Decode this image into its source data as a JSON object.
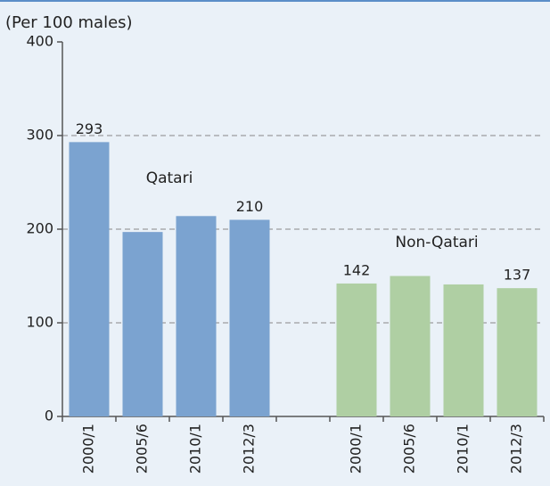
{
  "chart_data": {
    "type": "bar",
    "title": "(Per 100 males)",
    "categories": [
      "2000/1",
      "2005/6",
      "2010/1",
      "2012/3",
      null,
      "2000/1",
      "2005/6",
      "2010/1",
      "2012/3"
    ],
    "series": [
      {
        "name": "Qatari",
        "color": "#7ba3d0",
        "values": [
          293,
          197,
          214,
          210,
          null,
          null,
          null,
          null,
          null
        ],
        "value_labels": [
          "293",
          null,
          null,
          "210",
          null,
          null,
          null,
          null,
          null
        ]
      },
      {
        "name": "Non-Qatari",
        "color": "#afcfa3",
        "values": [
          null,
          null,
          null,
          null,
          null,
          142,
          150,
          141,
          137
        ],
        "value_labels": [
          null,
          null,
          null,
          null,
          null,
          "142",
          null,
          null,
          "137"
        ]
      }
    ],
    "ylim": [
      0,
      400
    ],
    "yticks": [
      0,
      100,
      200,
      300,
      400
    ],
    "grid": true
  }
}
